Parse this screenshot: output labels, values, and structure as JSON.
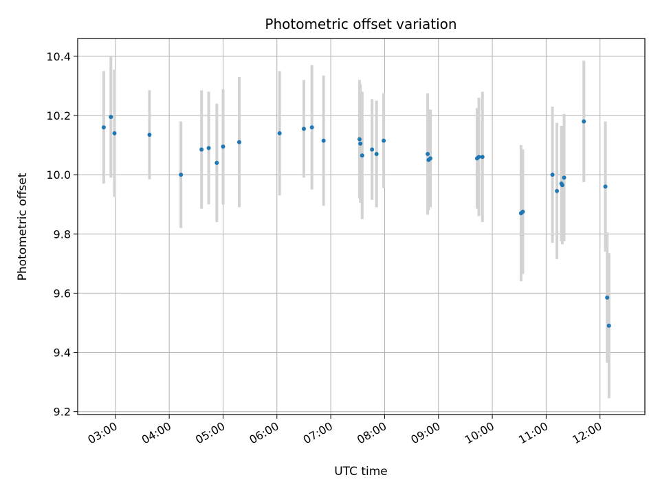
{
  "chart_data": {
    "type": "scatter",
    "title": "Photometric offset variation",
    "xlabel": "UTC time",
    "ylabel": "Photometric offset",
    "x_tick_labels": [
      "03:00",
      "04:00",
      "05:00",
      "06:00",
      "07:00",
      "08:00",
      "09:00",
      "10:00",
      "11:00",
      "12:00"
    ],
    "y_tick_labels": [
      "9.2",
      "9.4",
      "9.6",
      "9.8",
      "10.0",
      "10.2",
      "10.4"
    ],
    "xlim": [
      "02:18",
      "12:50"
    ],
    "ylim": [
      9.19,
      10.46
    ],
    "grid": true,
    "colors": {
      "points": "#1f77b4",
      "errorbars": "#d3d3d3",
      "grid": "#b0b0b0"
    },
    "series": [
      {
        "points": [
          {
            "x": "02:47",
            "y": 10.16,
            "err": 0.19
          },
          {
            "x": "02:55",
            "y": 10.195,
            "err": 0.205
          },
          {
            "x": "02:59",
            "y": 10.14,
            "err": 0.215
          },
          {
            "x": "03:38",
            "y": 10.135,
            "err": 0.15
          },
          {
            "x": "04:13",
            "y": 10.0,
            "err": 0.18
          },
          {
            "x": "04:36",
            "y": 10.085,
            "err": 0.2
          },
          {
            "x": "04:44",
            "y": 10.09,
            "err": 0.19
          },
          {
            "x": "04:53",
            "y": 10.04,
            "err": 0.2
          },
          {
            "x": "05:00",
            "y": 10.095,
            "err": 0.195
          },
          {
            "x": "05:18",
            "y": 10.11,
            "err": 0.22
          },
          {
            "x": "06:03",
            "y": 10.14,
            "err": 0.21
          },
          {
            "x": "06:30",
            "y": 10.155,
            "err": 0.165
          },
          {
            "x": "06:39",
            "y": 10.16,
            "err": 0.21
          },
          {
            "x": "06:52",
            "y": 10.115,
            "err": 0.22
          },
          {
            "x": "07:32",
            "y": 10.12,
            "err": 0.2
          },
          {
            "x": "07:33",
            "y": 10.105,
            "err": 0.2
          },
          {
            "x": "07:35",
            "y": 10.065,
            "err": 0.215
          },
          {
            "x": "07:46",
            "y": 10.085,
            "err": 0.17
          },
          {
            "x": "07:51",
            "y": 10.07,
            "err": 0.18
          },
          {
            "x": "07:59",
            "y": 10.115,
            "err": 0.16
          },
          {
            "x": "08:48",
            "y": 10.07,
            "err": 0.205
          },
          {
            "x": "08:49",
            "y": 10.05,
            "err": 0.17
          },
          {
            "x": "08:51",
            "y": 10.055,
            "err": 0.165
          },
          {
            "x": "09:43",
            "y": 10.055,
            "err": 0.17
          },
          {
            "x": "09:45",
            "y": 10.06,
            "err": 0.2
          },
          {
            "x": "09:49",
            "y": 10.06,
            "err": 0.22
          },
          {
            "x": "10:32",
            "y": 9.87,
            "err": 0.23
          },
          {
            "x": "10:34",
            "y": 9.875,
            "err": 0.21
          },
          {
            "x": "11:07",
            "y": 10.0,
            "err": 0.23
          },
          {
            "x": "11:12",
            "y": 9.945,
            "err": 0.23
          },
          {
            "x": "11:17",
            "y": 9.97,
            "err": 0.195
          },
          {
            "x": "11:18",
            "y": 9.965,
            "err": 0.2
          },
          {
            "x": "11:20",
            "y": 9.99,
            "err": 0.215
          },
          {
            "x": "11:42",
            "y": 10.18,
            "err": 0.205
          },
          {
            "x": "12:06",
            "y": 9.96,
            "err": 0.22
          },
          {
            "x": "12:08",
            "y": 9.585,
            "err": 0.22
          },
          {
            "x": "12:10",
            "y": 9.49,
            "err": 0.245
          }
        ]
      }
    ]
  }
}
